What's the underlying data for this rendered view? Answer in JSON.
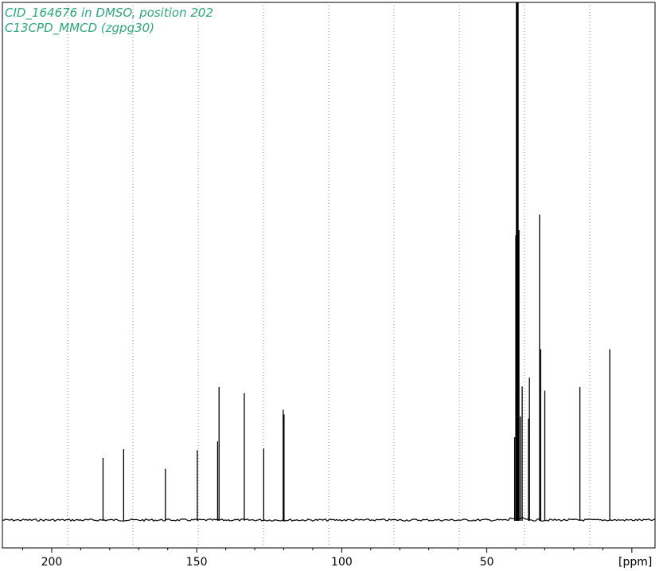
{
  "chart_data": {
    "type": "line",
    "title_lines": [
      "CID_164676 in DMSO, position 202",
      "C13CPD_MMCD (zgpg30)"
    ],
    "xlabel": "[ppm]",
    "ylabel": "",
    "x_reversed": true,
    "xlim": [
      217,
      -8
    ],
    "ylim": [
      -0.05,
      1.0
    ],
    "grid": true,
    "x_ticks": [
      200,
      150,
      100,
      50
    ],
    "x_tick_labels": [
      "200",
      "150",
      "100",
      "50"
    ],
    "grid_lines_ppm": [
      194.5,
      172.0,
      149.5,
      127.0,
      104.5,
      82.0,
      59.5,
      37.0,
      14.5
    ],
    "baseline": 0.0,
    "peaks": [
      {
        "ppm": 182.3,
        "intensity": 0.12
      },
      {
        "ppm": 175.2,
        "intensity": 0.137
      },
      {
        "ppm": 160.8,
        "intensity": 0.099
      },
      {
        "ppm": 149.8,
        "intensity": 0.135
      },
      {
        "ppm": 142.8,
        "intensity": 0.152
      },
      {
        "ppm": 142.3,
        "intensity": 0.257
      },
      {
        "ppm": 133.6,
        "intensity": 0.245
      },
      {
        "ppm": 126.9,
        "intensity": 0.138
      },
      {
        "ppm": 120.2,
        "intensity": 0.213
      },
      {
        "ppm": 119.9,
        "intensity": 0.204
      },
      {
        "ppm": 40.4,
        "intensity": 0.16
      },
      {
        "ppm": 40.0,
        "intensity": 0.55
      },
      {
        "ppm": 39.7,
        "intensity": 1.0
      },
      {
        "ppm": 39.3,
        "intensity": 1.0
      },
      {
        "ppm": 38.9,
        "intensity": 0.56
      },
      {
        "ppm": 38.4,
        "intensity": 0.2
      },
      {
        "ppm": 37.8,
        "intensity": 0.258
      },
      {
        "ppm": 35.6,
        "intensity": 0.196
      },
      {
        "ppm": 35.3,
        "intensity": 0.275
      },
      {
        "ppm": 31.8,
        "intensity": 0.59
      },
      {
        "ppm": 31.4,
        "intensity": 0.33
      },
      {
        "ppm": 30.0,
        "intensity": 0.25
      },
      {
        "ppm": 17.9,
        "intensity": 0.257
      },
      {
        "ppm": 7.6,
        "intensity": 0.33
      }
    ],
    "colors": {
      "title": "#2ca87a",
      "trace": "#000000",
      "grid": "#888888",
      "frame": "#000000"
    }
  }
}
